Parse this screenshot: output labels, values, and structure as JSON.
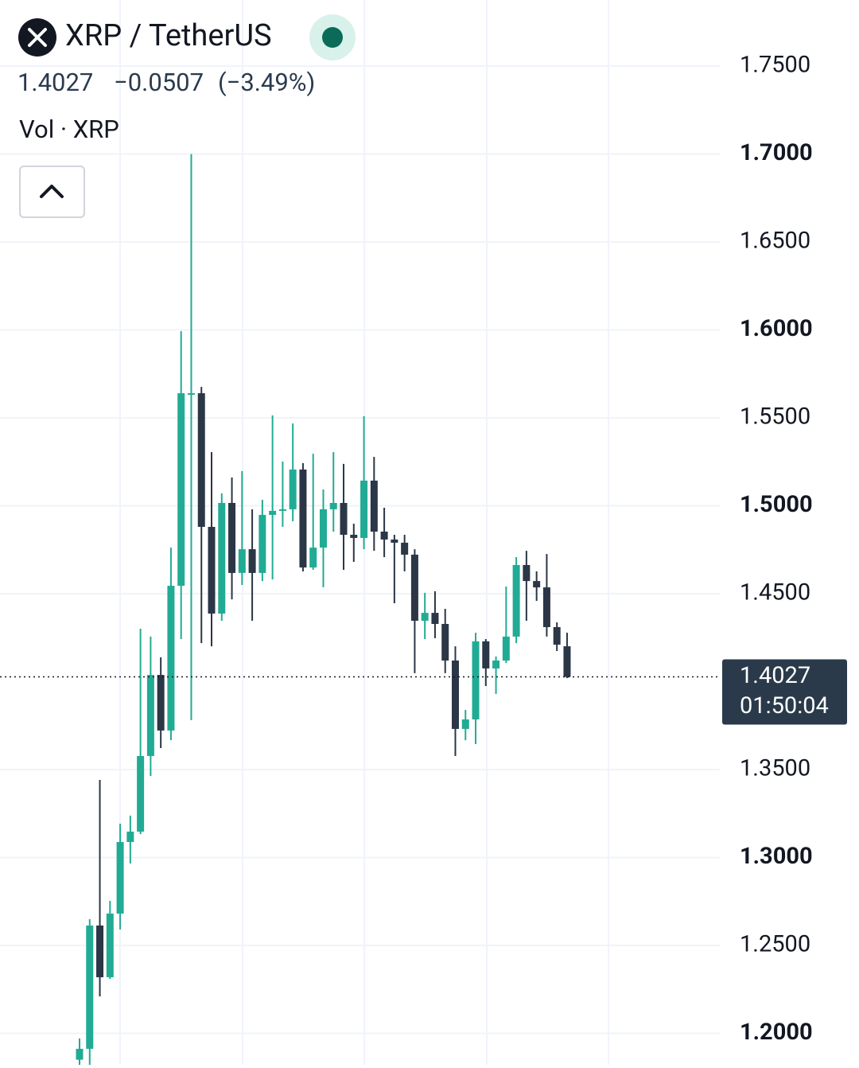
{
  "chart_data": {
    "type": "candlestick",
    "title": "XRP / TetherUS",
    "last_price": 1.4027,
    "change": "−0.0507",
    "change_pct": "(−3.49%)",
    "volume_label": "Vol · XRP",
    "countdown": "01:50:04",
    "up_color": "#22ab94",
    "down_color": "#2b3646",
    "grid": true,
    "ylim": [
      1.1821,
      1.7876
    ],
    "yticks": [
      {
        "value": 1.75,
        "label": "1.7500"
      },
      {
        "value": 1.7,
        "label": "1.7000"
      },
      {
        "value": 1.65,
        "label": "1.6500"
      },
      {
        "value": 1.6,
        "label": "1.6000"
      },
      {
        "value": 1.55,
        "label": "1.5500"
      },
      {
        "value": 1.5,
        "label": "1.5000"
      },
      {
        "value": 1.45,
        "label": "1.4500"
      },
      {
        "value": 1.35,
        "label": "1.3500"
      },
      {
        "value": 1.3,
        "label": "1.3000"
      },
      {
        "value": 1.25,
        "label": "1.2500"
      },
      {
        "value": 1.2,
        "label": "1.2000"
      }
    ],
    "open": [
      1.185,
      1.1912,
      1.2613,
      1.2319,
      1.2681,
      1.3088,
      1.3147,
      1.3577,
      1.4038,
      1.3722,
      1.4545,
      1.5631,
      1.564,
      1.488,
      1.4387,
      1.5016,
      1.4618,
      1.4753,
      1.4618,
      1.4948,
      1.4971,
      1.498,
      1.5206,
      1.4649,
      1.4762,
      1.498,
      1.5016,
      1.4835,
      1.4817,
      1.5143,
      1.4853,
      1.4808,
      1.479,
      1.4722,
      1.4346,
      1.4391,
      1.4328,
      1.412,
      1.3731,
      1.3785,
      1.4229,
      1.4075,
      1.412,
      1.4256,
      1.4663,
      1.4572,
      1.4536,
      1.431,
      1.4201
    ],
    "high": [
      1.1971,
      1.2649,
      1.3441,
      1.2753,
      1.3192,
      1.3238,
      1.4301,
      1.4256,
      1.4138,
      1.4762,
      1.5993,
      1.7,
      1.5676,
      1.5305,
      1.507,
      1.5161,
      1.5197,
      1.498,
      1.5034,
      1.5514,
      1.5251,
      1.5468,
      1.5242,
      1.5296,
      1.5093,
      1.5305,
      1.5238,
      1.4898,
      1.5509,
      1.5278,
      1.4989,
      1.4835,
      1.4835,
      1.4753,
      1.4505,
      1.4514,
      1.4414,
      1.4201,
      1.3839,
      1.4278,
      1.4242,
      1.4143,
      1.4541,
      1.4708,
      1.4744,
      1.4627,
      1.4726,
      1.4337,
      1.4278
    ],
    "low": [
      1.182,
      1.182,
      1.221,
      1.231,
      1.2591,
      1.2966,
      1.3133,
      1.3464,
      1.3622,
      1.3667,
      1.4242,
      1.3781,
      1.4219,
      1.4201,
      1.4346,
      1.4468,
      1.455,
      1.4346,
      1.4572,
      1.4581,
      1.488,
      1.4912,
      1.4627,
      1.4636,
      1.4536,
      1.4853,
      1.4636,
      1.4681,
      1.4753,
      1.4744,
      1.4708,
      1.4446,
      1.4627,
      1.4048,
      1.4242,
      1.4247,
      1.4048,
      1.3577,
      1.3667,
      1.3645,
      1.3975,
      1.393,
      1.4106,
      1.4219,
      1.4346,
      1.4459,
      1.4256,
      1.4174,
      1.402
    ],
    "close": [
      1.1912,
      1.2613,
      1.2319,
      1.2681,
      1.3088,
      1.3147,
      1.3577,
      1.4038,
      1.3722,
      1.4545,
      1.564,
      1.564,
      1.488,
      1.4387,
      1.5016,
      1.4618,
      1.4753,
      1.4618,
      1.4948,
      1.4971,
      1.498,
      1.5206,
      1.4649,
      1.4762,
      1.498,
      1.5016,
      1.4835,
      1.4817,
      1.5143,
      1.4853,
      1.4808,
      1.479,
      1.4722,
      1.4346,
      1.4391,
      1.4328,
      1.412,
      1.3731,
      1.3785,
      1.4229,
      1.4075,
      1.412,
      1.4256,
      1.4663,
      1.4572,
      1.4536,
      1.431,
      1.421,
      1.4027
    ]
  }
}
